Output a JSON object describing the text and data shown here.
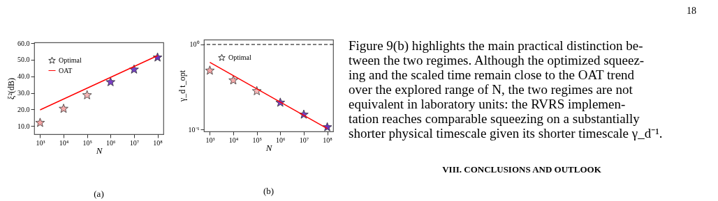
{
  "chart_data": [
    {
      "type": "scatter",
      "ylabel": "ξ²(dB)",
      "xlabel": "N",
      "log": "x",
      "grid": false,
      "legend": "top left",
      "xlim": [
        562,
        178000000
      ],
      "ylim": [
        5,
        60.5
      ],
      "xticks": [
        {
          "value": 1000,
          "label": "10³"
        },
        {
          "value": 10000,
          "label": "10⁴"
        },
        {
          "value": 100000,
          "label": "10⁵"
        },
        {
          "value": 1000000,
          "label": "10⁶"
        },
        {
          "value": 10000000,
          "label": "10⁷"
        },
        {
          "value": 100000000,
          "label": "10⁸"
        }
      ],
      "yticks": [
        {
          "value": 10,
          "label": "10.0"
        },
        {
          "value": 20,
          "label": "20.0"
        },
        {
          "value": 30,
          "label": "30.0"
        },
        {
          "value": 40,
          "label": "40.0"
        },
        {
          "value": 50,
          "label": "50.0"
        },
        {
          "value": 60,
          "label": "60.0"
        }
      ],
      "annotations": [
        "(a)"
      ],
      "series": [
        {
          "name": "Optimal",
          "type": "scatter",
          "marker": "star",
          "x": [
            1000,
            10000,
            100000,
            1000000,
            10000000,
            100000000
          ],
          "values": [
            12.2,
            20.7,
            28.9,
            36.8,
            44.4,
            51.7
          ],
          "colors": [
            "#f4a3a3",
            "#f5aaaa",
            "#f7b8b8",
            "#7b3fc4",
            "#7340c4",
            "#6c34c0"
          ]
        },
        {
          "name": "OAT",
          "type": "line",
          "color": "#ff0000",
          "x": [
            1000,
            100000000
          ],
          "values": [
            19.7,
            52.5
          ]
        }
      ]
    },
    {
      "type": "scatter",
      "ylabel": "γ_d t_opt",
      "xlabel": "N",
      "log": "xy",
      "grid": false,
      "legend": "top left",
      "xlim": [
        562,
        178000000
      ],
      "ylim": [
        0.095,
        1.14
      ],
      "xticks": [
        {
          "value": 1000,
          "label": "10³"
        },
        {
          "value": 10000,
          "label": "10⁴"
        },
        {
          "value": 100000,
          "label": "10⁵"
        },
        {
          "value": 1000000,
          "label": "10⁶"
        },
        {
          "value": 10000000,
          "label": "10⁷"
        },
        {
          "value": 100000000,
          "label": "10⁸"
        }
      ],
      "yticks": [
        {
          "value": 0.1,
          "label": "10⁻¹"
        },
        {
          "value": 1,
          "label": "10⁰"
        }
      ],
      "ref_lines": [
        {
          "axis": "y",
          "value": 1,
          "color": "#000000",
          "line_style": "dashed"
        }
      ],
      "annotations": [
        "(b)"
      ],
      "series": [
        {
          "name": "Optimal",
          "type": "scatter",
          "marker": "star",
          "x": [
            1000,
            10000,
            100000,
            1000000,
            10000000,
            100000000
          ],
          "values": [
            0.5,
            0.384,
            0.287,
            0.21,
            0.152,
            0.108
          ],
          "colors": [
            "#f4a3a3",
            "#f5aaaa",
            "#f7b8b8",
            "#7b3fc4",
            "#7340c4",
            "#6c34c0"
          ]
        },
        {
          "type": "line",
          "color": "#ff0000",
          "x": [
            1000,
            100000000
          ],
          "values": [
            0.616,
            0.1025
          ]
        }
      ]
    },
    {
      "type": "other",
      "annotations": [
        "18",
        "Figure 9(b) highlights the main practical distinction be-",
        "tween the two regimes. Although the optimized squeez-",
        "ing and the scaled time remain close to the OAT trend",
        "over the explored range of N, the two regimes are not",
        "equivalent in laboratory units: the RVRS implemen-",
        "tation reaches comparable squeezing on a substantially",
        "shorter physical timescale given its shorter timescale γ_d⁻¹.",
        "VIII.   CONCLUSIONS AND OUTLOOK"
      ]
    }
  ]
}
